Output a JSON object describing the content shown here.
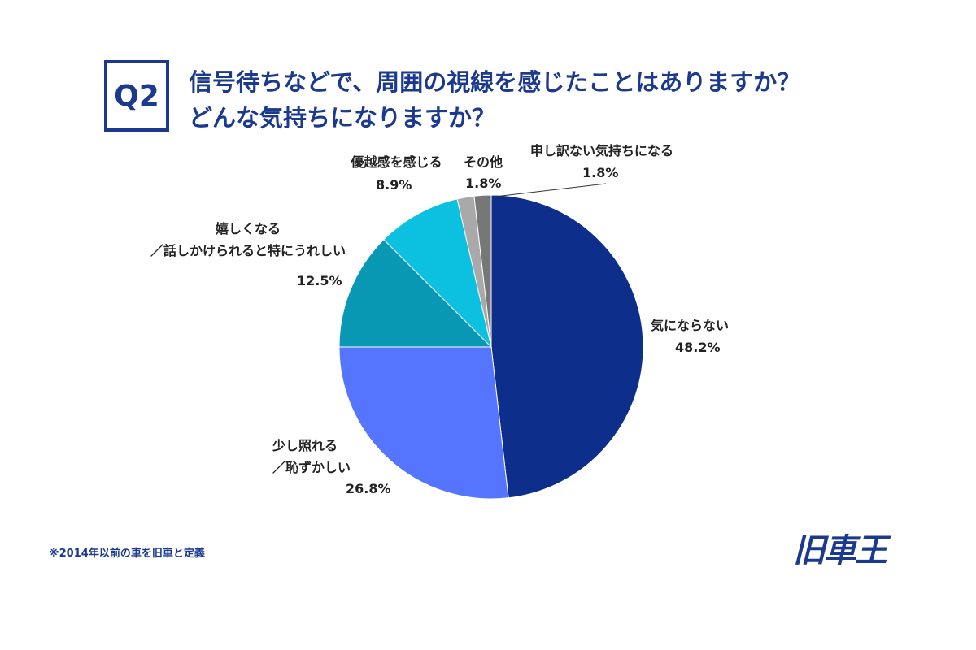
{
  "chart_data": {
    "type": "pie",
    "badge": "Q2",
    "title": "信号待ちなどで、周囲の視線を感じたことはありますか？",
    "subtitle": "どんな気持ちになりますか？",
    "categories": [
      "気にならない",
      "少し照れる\n／恥ずかしい",
      "嬉しくなる\n／話しかけられると特にうれしい",
      "優越感を感じる",
      "その他",
      "申し訳ない気持ちになる"
    ],
    "values": [
      48.2,
      26.8,
      12.5,
      8.9,
      1.8,
      1.8
    ],
    "value_labels": [
      "48.2%",
      "26.8%",
      "12.5%",
      "8.9%",
      "1.8%",
      "1.8%"
    ],
    "colors": [
      "#0d2e8a",
      "#5575ff",
      "#0898b4",
      "#0cc0e0",
      "#a9a9a9",
      "#777777"
    ],
    "footnote": "※2014年以前の車を旧車と定義",
    "logo": "旧車王"
  }
}
